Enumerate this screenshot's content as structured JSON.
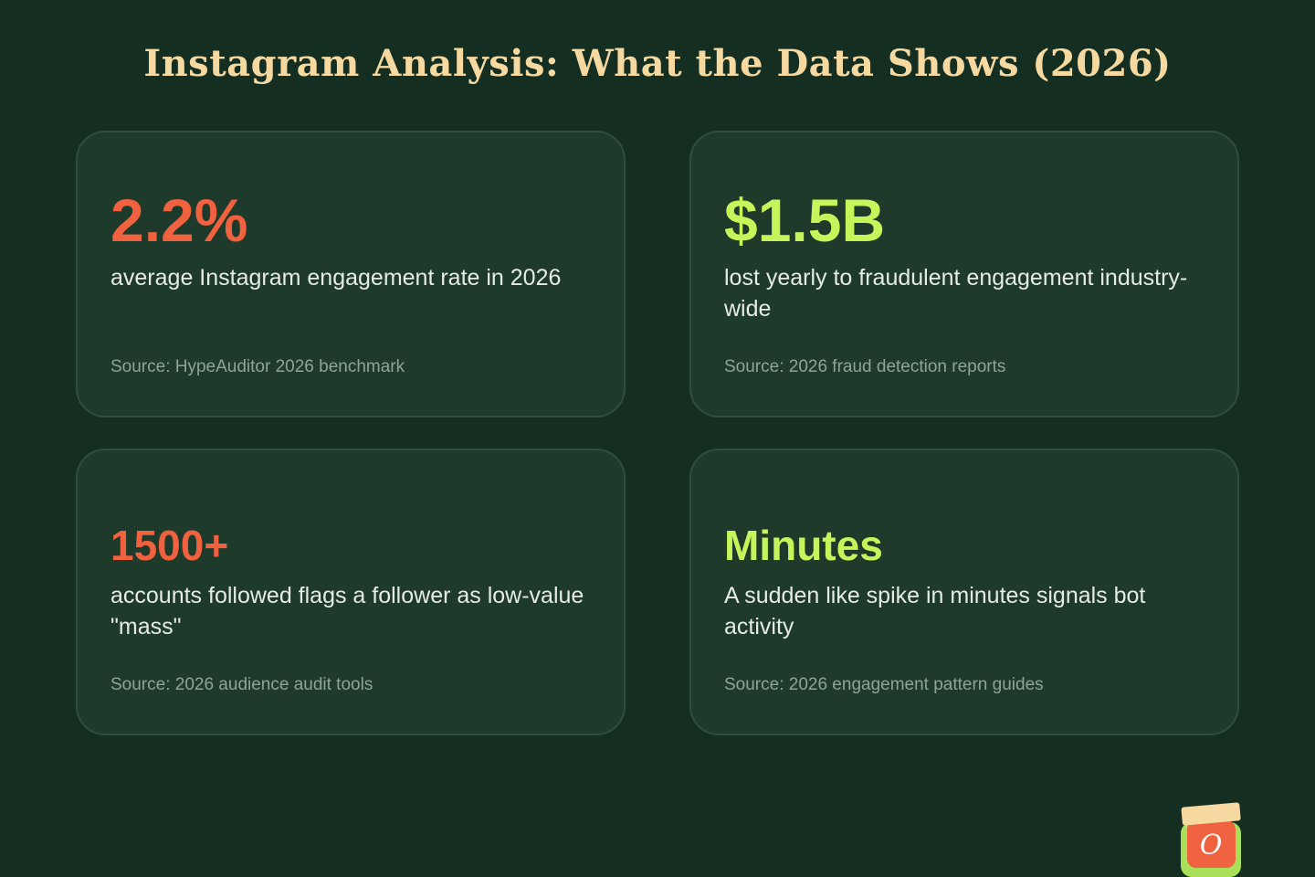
{
  "header": {
    "title": "Instagram Analysis: What the Data Shows (2026)"
  },
  "cards": [
    {
      "stat": "2.2%",
      "description": "average Instagram engagement rate in 2026",
      "source": "Source: HypeAuditor 2026 benchmark",
      "accent": "#f0613f"
    },
    {
      "stat": "$1.5B",
      "description": "lost yearly to fraudulent engagement industry-wide",
      "source": "Source: 2026 fraud detection reports",
      "accent": "#c4f55a"
    },
    {
      "stat": "1500+",
      "description": "accounts followed flags a follower as low-value \"mass\"",
      "source": "Source: 2026 audience audit tools",
      "accent": "#f0613f"
    },
    {
      "stat": "Minutes",
      "description": "A sudden like spike in minutes signals bot activity",
      "source": "Source: 2026 engagement pattern guides",
      "accent": "#c4f55a"
    }
  ],
  "logo": {
    "letter": "O",
    "icon": "jar-logo-icon"
  },
  "colors": {
    "background": "#152e22",
    "card": "#1e3a2a",
    "title": "#f5d9a0",
    "accent_red": "#f0613f",
    "accent_green": "#c4f55a"
  }
}
